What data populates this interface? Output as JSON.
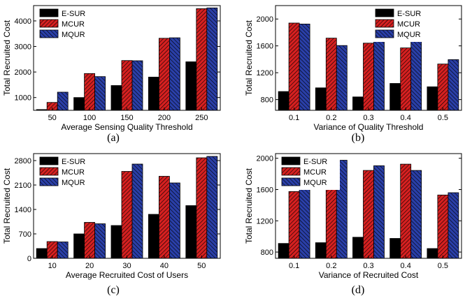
{
  "figure": {
    "panels": [
      {
        "caption": "(a)"
      },
      {
        "caption": "(b)"
      },
      {
        "caption": "(c)"
      },
      {
        "caption": "(d)"
      }
    ]
  },
  "colors": {
    "E-SUR": "#000000",
    "MCUR": "#d62020",
    "MQUR": "#2a3fa8"
  },
  "chart_data": [
    {
      "type": "bar",
      "title": "",
      "xlabel": "Average Sensing Quality Threshold",
      "ylabel": "Total Recruited Cost",
      "categories": [
        "50",
        "100",
        "150",
        "200",
        "250"
      ],
      "ylim": [
        500,
        4600
      ],
      "yticks": [
        1000,
        2000,
        3000,
        4000
      ],
      "legend": "top-left",
      "series": [
        {
          "name": "E-SUR",
          "values": [
            530,
            1000,
            1470,
            1800,
            2400
          ]
        },
        {
          "name": "MCUR",
          "values": [
            810,
            1940,
            2450,
            3320,
            4480
          ]
        },
        {
          "name": "MQUR",
          "values": [
            1210,
            1820,
            2440,
            3340,
            4510
          ]
        }
      ]
    },
    {
      "type": "bar",
      "title": "",
      "xlabel": "Variance of Quality Threshold",
      "ylabel": "Total Recruited Cost",
      "categories": [
        "0.1",
        "0.2",
        "0.3",
        "0.4",
        "0.5"
      ],
      "ylim": [
        640,
        2200
      ],
      "yticks": [
        800,
        1200,
        1600,
        2000
      ],
      "legend": "top-right",
      "series": [
        {
          "name": "E-SUR",
          "values": [
            920,
            975,
            840,
            1040,
            990
          ]
        },
        {
          "name": "MCUR",
          "values": [
            1940,
            1715,
            1640,
            1570,
            1330
          ]
        },
        {
          "name": "MQUR",
          "values": [
            1925,
            1605,
            1665,
            1715,
            1395
          ]
        }
      ]
    },
    {
      "type": "bar",
      "title": "",
      "xlabel": "Average Recruited Cost of Users",
      "ylabel": "Total Recruited Cost",
      "categories": [
        "10",
        "20",
        "30",
        "40",
        "50"
      ],
      "ylim": [
        0,
        3000
      ],
      "yticks": [
        0,
        700,
        1400,
        2100,
        2800
      ],
      "legend": "top-left",
      "series": [
        {
          "name": "E-SUR",
          "values": [
            280,
            700,
            940,
            1260,
            1510
          ]
        },
        {
          "name": "MCUR",
          "values": [
            480,
            1030,
            2490,
            2350,
            2880
          ]
        },
        {
          "name": "MQUR",
          "values": [
            470,
            990,
            2700,
            2160,
            2920
          ]
        }
      ]
    },
    {
      "type": "bar",
      "title": "",
      "xlabel": "Variance of Recruited Cost",
      "ylabel": "Total Recruited Cost",
      "categories": [
        "0.1",
        "0.2",
        "0.3",
        "0.4",
        "0.5"
      ],
      "ylim": [
        720,
        2060
      ],
      "yticks": [
        800,
        1200,
        1600,
        2000
      ],
      "legend": "top-left",
      "series": [
        {
          "name": "E-SUR",
          "values": [
            910,
            920,
            990,
            975,
            845
          ]
        },
        {
          "name": "MCUR",
          "values": [
            1575,
            1900,
            1845,
            1925,
            1530
          ]
        },
        {
          "name": "MQUR",
          "values": [
            1605,
            1975,
            1905,
            1845,
            1560
          ]
        }
      ]
    }
  ]
}
